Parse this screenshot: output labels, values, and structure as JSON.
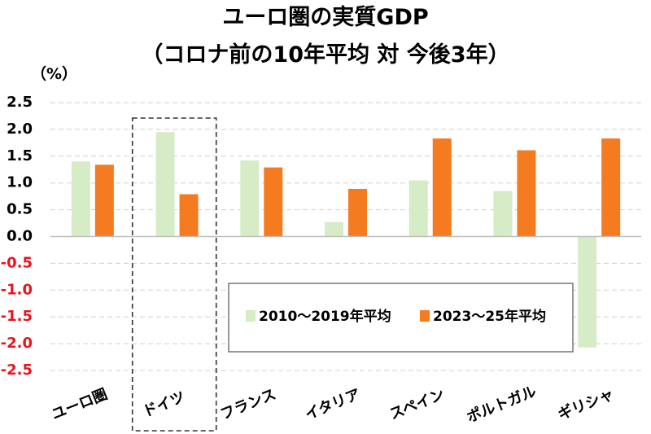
{
  "title_line1": "ユーロ圏の実質GDP",
  "title_line2": "（コロナ前の10年平均 対 今後3年）",
  "unit_label": "（%）",
  "chart_data": {
    "type": "bar",
    "title": "ユーロ圏の実質GDP（コロナ前の10年平均 対 今後3年）",
    "ylabel": "（%）",
    "ylim": [
      -2.5,
      2.5
    ],
    "yticks": [
      "2.5",
      "2.0",
      "1.5",
      "1.0",
      "0.5",
      "0.0",
      "-0.5",
      "-1.0",
      "-1.5",
      "-2.0",
      "-2.5"
    ],
    "negative_tick_color": "#e8141c",
    "grid": true,
    "legend_position": "center-right",
    "categories": [
      "ユーロ圏",
      "ドイツ",
      "フランス",
      "イタリア",
      "スペイン",
      "ポルトガル",
      "ギリシャ"
    ],
    "highlight_category": "ドイツ",
    "series": [
      {
        "name": "2010～2019年平均",
        "color": "#d6ecc7",
        "values": [
          1.4,
          1.95,
          1.42,
          0.27,
          1.05,
          0.85,
          -2.07
        ]
      },
      {
        "name": "2023～25年平均",
        "color": "#f47b20",
        "values": [
          1.34,
          0.79,
          1.29,
          0.89,
          1.83,
          1.61,
          1.83
        ]
      }
    ]
  }
}
